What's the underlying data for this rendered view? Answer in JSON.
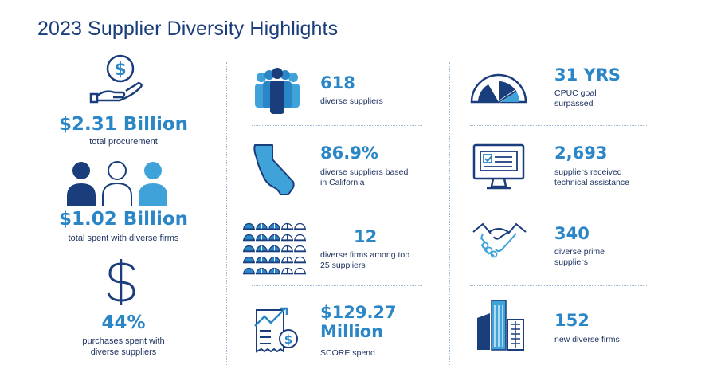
{
  "title": "2023 Supplier Diversity Highlights",
  "colors": {
    "navy": "#1a3d7c",
    "blue": "#2a86c7",
    "light_blue": "#3fa2d9",
    "text": "#1a2f5e"
  },
  "left": [
    {
      "value": "$2.31 Billion",
      "label": "total procurement",
      "icon": "money-hand-icon"
    },
    {
      "value": "$1.02 Billion",
      "label": "total spent with diverse firms",
      "icon": "people-group-icon"
    },
    {
      "value": "44%",
      "label": "purchases spent with diverse suppliers",
      "icon": "dollar-sign-icon"
    }
  ],
  "middle": [
    {
      "value": "618",
      "label": "diverse suppliers",
      "icon": "crowd-icon"
    },
    {
      "value": "86.9%",
      "label": "diverse suppliers based in California",
      "icon": "california-map-icon"
    },
    {
      "value": "12",
      "label": "diverse firms among top 25 suppliers",
      "icon": "hardhat-grid-icon"
    },
    {
      "value": "$129.27 Million",
      "label": "SCORE spend",
      "icon": "receipt-chart-icon"
    }
  ],
  "right": [
    {
      "value": "31 YRS",
      "label": "CPUC goal surpassed",
      "icon": "gauge-icon"
    },
    {
      "value": "2,693",
      "label": "suppliers received technical assistance",
      "icon": "monitor-checklist-icon"
    },
    {
      "value": "340",
      "label": "diverse prime suppliers",
      "icon": "handshake-icon"
    },
    {
      "value": "152",
      "label": "new diverse firms",
      "icon": "buildings-icon"
    }
  ]
}
